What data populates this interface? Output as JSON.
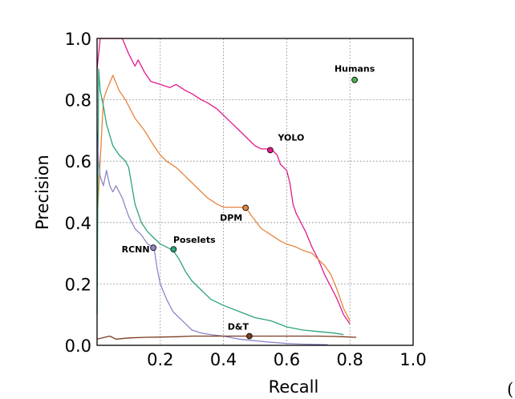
{
  "chart_data": {
    "type": "line",
    "title": "",
    "xlabel": "Recall",
    "ylabel": "Precision",
    "xlim": [
      0,
      1
    ],
    "ylim": [
      0,
      1
    ],
    "xticks": [
      "0.2",
      "0.4",
      "0.6",
      "0.8",
      "1.0"
    ],
    "yticks": [
      "0.0",
      "0.2",
      "0.4",
      "0.6",
      "0.8",
      "1.0"
    ],
    "grid": true,
    "series": [
      {
        "name": "YOLO",
        "color": "#e31a8c",
        "x": [
          0.0,
          0.01,
          0.02,
          0.05,
          0.08,
          0.1,
          0.12,
          0.13,
          0.15,
          0.17,
          0.2,
          0.23,
          0.25,
          0.28,
          0.3,
          0.33,
          0.35,
          0.38,
          0.4,
          0.43,
          0.45,
          0.48,
          0.5,
          0.52,
          0.54,
          0.55,
          0.57,
          0.58,
          0.6,
          0.61,
          0.62,
          0.63,
          0.64,
          0.66,
          0.68,
          0.7,
          0.72,
          0.74,
          0.76,
          0.78,
          0.8
        ],
        "y": [
          0.9,
          1.0,
          1.0,
          1.0,
          1.0,
          0.95,
          0.91,
          0.93,
          0.89,
          0.86,
          0.85,
          0.84,
          0.85,
          0.83,
          0.82,
          0.8,
          0.79,
          0.77,
          0.75,
          0.72,
          0.7,
          0.67,
          0.65,
          0.64,
          0.64,
          0.64,
          0.62,
          0.59,
          0.57,
          0.53,
          0.46,
          0.43,
          0.41,
          0.37,
          0.32,
          0.28,
          0.23,
          0.19,
          0.15,
          0.1,
          0.07
        ]
      },
      {
        "name": "DPM",
        "color": "#e8843a",
        "x": [
          0.0,
          0.01,
          0.02,
          0.03,
          0.05,
          0.07,
          0.09,
          0.1,
          0.12,
          0.15,
          0.18,
          0.2,
          0.22,
          0.25,
          0.28,
          0.3,
          0.33,
          0.35,
          0.38,
          0.4,
          0.42,
          0.45,
          0.47,
          0.49,
          0.52,
          0.55,
          0.58,
          0.6,
          0.63,
          0.65,
          0.68,
          0.7,
          0.72,
          0.74,
          0.76,
          0.78,
          0.8
        ],
        "y": [
          0.4,
          0.6,
          0.8,
          0.83,
          0.88,
          0.83,
          0.8,
          0.78,
          0.74,
          0.7,
          0.65,
          0.62,
          0.6,
          0.58,
          0.55,
          0.53,
          0.5,
          0.48,
          0.46,
          0.45,
          0.45,
          0.45,
          0.45,
          0.42,
          0.38,
          0.36,
          0.34,
          0.33,
          0.32,
          0.31,
          0.3,
          0.28,
          0.26,
          0.23,
          0.18,
          0.12,
          0.08
        ]
      },
      {
        "name": "Poselets",
        "color": "#2ca37a",
        "x": [
          0.0,
          0.005,
          0.01,
          0.02,
          0.03,
          0.05,
          0.07,
          0.09,
          0.1,
          0.12,
          0.14,
          0.16,
          0.18,
          0.2,
          0.22,
          0.24,
          0.26,
          0.28,
          0.3,
          0.33,
          0.36,
          0.4,
          0.45,
          0.5,
          0.55,
          0.6,
          0.65,
          0.7,
          0.75,
          0.78
        ],
        "y": [
          0.1,
          0.9,
          0.83,
          0.78,
          0.72,
          0.65,
          0.62,
          0.6,
          0.58,
          0.46,
          0.4,
          0.37,
          0.35,
          0.33,
          0.32,
          0.31,
          0.28,
          0.24,
          0.21,
          0.18,
          0.15,
          0.13,
          0.11,
          0.09,
          0.08,
          0.06,
          0.05,
          0.045,
          0.04,
          0.035
        ]
      },
      {
        "name": "RCNN",
        "color": "#8e86c8",
        "x": [
          0.0,
          0.005,
          0.01,
          0.02,
          0.03,
          0.04,
          0.05,
          0.06,
          0.08,
          0.1,
          0.12,
          0.14,
          0.16,
          0.18,
          0.19,
          0.2,
          0.22,
          0.24,
          0.26,
          0.28,
          0.3,
          0.33,
          0.36,
          0.4,
          0.45,
          0.5,
          0.55,
          0.6,
          0.65,
          0.7,
          0.73
        ],
        "y": [
          0.7,
          0.6,
          0.55,
          0.52,
          0.57,
          0.52,
          0.5,
          0.52,
          0.48,
          0.42,
          0.38,
          0.36,
          0.33,
          0.32,
          0.25,
          0.2,
          0.15,
          0.11,
          0.09,
          0.07,
          0.05,
          0.04,
          0.035,
          0.03,
          0.02,
          0.015,
          0.01,
          0.006,
          0.004,
          0.003,
          0.002
        ]
      },
      {
        "name": "D&T",
        "color": "#7a3b1f",
        "x": [
          0.0,
          0.02,
          0.04,
          0.06,
          0.1,
          0.15,
          0.2,
          0.25,
          0.3,
          0.35,
          0.4,
          0.45,
          0.5,
          0.55,
          0.6,
          0.65,
          0.7,
          0.75,
          0.78,
          0.82
        ],
        "y": [
          0.02,
          0.025,
          0.03,
          0.02,
          0.024,
          0.026,
          0.027,
          0.028,
          0.03,
          0.03,
          0.03,
          0.03,
          0.03,
          0.03,
          0.03,
          0.03,
          0.03,
          0.029,
          0.028,
          0.026
        ]
      }
    ],
    "points": [
      {
        "label": "Humans",
        "x": 0.815,
        "y": 0.865,
        "color": "#4caf50"
      },
      {
        "label": "YOLO",
        "x": 0.548,
        "y": 0.636,
        "color": "#e31a8c"
      },
      {
        "label": "DPM",
        "x": 0.47,
        "y": 0.448,
        "color": "#e8843a"
      },
      {
        "label": "Poselets",
        "x": 0.242,
        "y": 0.313,
        "color": "#2ca37a"
      },
      {
        "label": "RCNN",
        "x": 0.178,
        "y": 0.318,
        "color": "#8e86c8"
      },
      {
        "label": "D&T",
        "x": 0.482,
        "y": 0.03,
        "color": "#7a3b1f"
      }
    ]
  },
  "clipped_char": "("
}
